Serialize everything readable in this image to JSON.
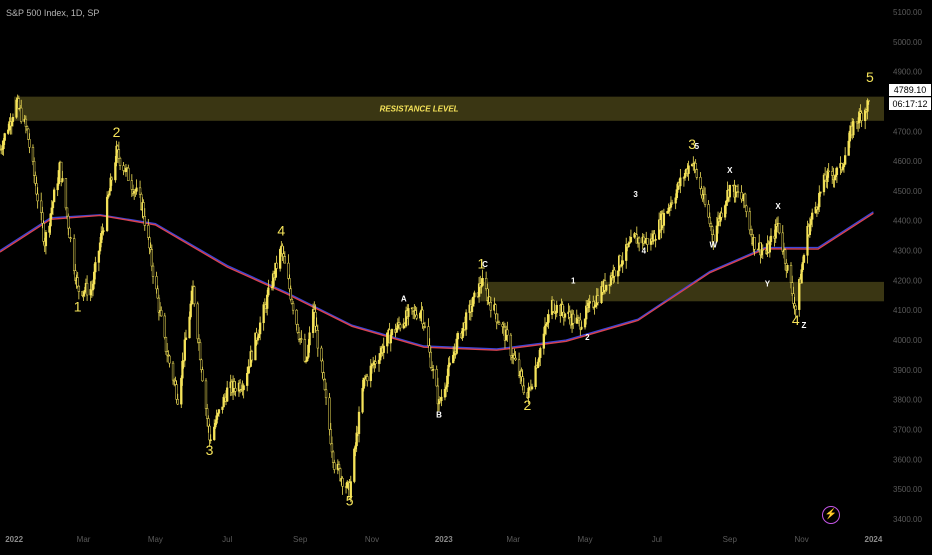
{
  "header": {
    "title": "S&P 500 Index, 1D, SP"
  },
  "price_tags": {
    "last_price": "4789.10",
    "countdown": "06:17:12"
  },
  "colors": {
    "background": "#000000",
    "candle": "#f5e35a",
    "zone_fill": "#3a3613",
    "ma_blue": "#3b46d8",
    "ma_red": "#d8434f",
    "label_yellow": "#f5e35a",
    "label_white": "#ffffff",
    "axis_text": "#5a5a5a",
    "accent_icon": "#c455e6"
  },
  "icons": {
    "bolt": "lightning-bolt-icon"
  },
  "chart_data": {
    "type": "candlestick",
    "title": "S&P 500 Index, 1D, SP",
    "y_ticks": [
      3400,
      3500,
      3600,
      3700,
      3800,
      3900,
      4000,
      4100,
      4200,
      4300,
      4400,
      4500,
      4600,
      4700,
      4800,
      4900,
      5000,
      5100
    ],
    "y_range": [
      3370,
      5140
    ],
    "x_range": [
      "2021-12-20",
      "2024-01-10"
    ],
    "x_ticks": [
      {
        "date": "2022-01-01",
        "label": "2022"
      },
      {
        "date": "2022-03-01",
        "label": "Mar"
      },
      {
        "date": "2022-05-01",
        "label": "May"
      },
      {
        "date": "2022-07-01",
        "label": "Jul"
      },
      {
        "date": "2022-09-01",
        "label": "Sep"
      },
      {
        "date": "2022-11-01",
        "label": "Nov"
      },
      {
        "date": "2023-01-01",
        "label": "2023"
      },
      {
        "date": "2023-03-01",
        "label": "Mar"
      },
      {
        "date": "2023-05-01",
        "label": "May"
      },
      {
        "date": "2023-07-01",
        "label": "Jul"
      },
      {
        "date": "2023-09-01",
        "label": "Sep"
      },
      {
        "date": "2023-11-01",
        "label": "Nov"
      },
      {
        "date": "2024-01-01",
        "label": "2024"
      }
    ],
    "price_path": [
      [
        "2021-12-20",
        4640
      ],
      [
        "2022-01-03",
        4796
      ],
      [
        "2022-01-12",
        4700
      ],
      [
        "2022-01-27",
        4330
      ],
      [
        "2022-02-09",
        4580
      ],
      [
        "2022-02-24",
        4170
      ],
      [
        "2022-03-08",
        4170
      ],
      [
        "2022-03-29",
        4630
      ],
      [
        "2022-04-20",
        4450
      ],
      [
        "2022-05-09",
        3990
      ],
      [
        "2022-05-20",
        3810
      ],
      [
        "2022-06-02",
        4170
      ],
      [
        "2022-06-16",
        3667
      ],
      [
        "2022-07-01",
        3830
      ],
      [
        "2022-07-15",
        3860
      ],
      [
        "2022-08-16",
        4305
      ],
      [
        "2022-09-06",
        3910
      ],
      [
        "2022-09-12",
        4110
      ],
      [
        "2022-09-30",
        3585
      ],
      [
        "2022-10-13",
        3491
      ],
      [
        "2022-10-25",
        3860
      ],
      [
        "2022-11-15",
        4010
      ],
      [
        "2022-12-01",
        4080
      ],
      [
        "2022-12-13",
        4100
      ],
      [
        "2022-12-28",
        3785
      ],
      [
        "2023-01-12",
        3990
      ],
      [
        "2023-02-02",
        4195
      ],
      [
        "2023-02-23",
        4010
      ],
      [
        "2023-03-13",
        3808
      ],
      [
        "2023-04-03",
        4120
      ],
      [
        "2023-04-26",
        4055
      ],
      [
        "2023-05-19",
        4190
      ],
      [
        "2023-06-12",
        4340
      ],
      [
        "2023-06-26",
        4330
      ],
      [
        "2023-07-31",
        4607
      ],
      [
        "2023-08-18",
        4350
      ],
      [
        "2023-09-01",
        4515
      ],
      [
        "2023-09-13",
        4465
      ],
      [
        "2023-09-21",
        4330
      ],
      [
        "2023-10-02",
        4290
      ],
      [
        "2023-10-12",
        4390
      ],
      [
        "2023-10-27",
        4103
      ],
      [
        "2023-11-06",
        4365
      ],
      [
        "2023-11-21",
        4540
      ],
      [
        "2023-12-04",
        4570
      ],
      [
        "2023-12-15",
        4720
      ],
      [
        "2023-12-28",
        4795
      ]
    ],
    "moving_averages": [
      {
        "color": "blue",
        "values": [
          [
            "2021-12-20",
            4300
          ],
          [
            "2022-02-01",
            4410
          ],
          [
            "2022-03-15",
            4420
          ],
          [
            "2022-05-01",
            4390
          ],
          [
            "2022-07-01",
            4250
          ],
          [
            "2022-08-20",
            4160
          ],
          [
            "2022-10-15",
            4050
          ],
          [
            "2022-12-15",
            3980
          ],
          [
            "2023-02-15",
            3970
          ],
          [
            "2023-04-15",
            4000
          ],
          [
            "2023-06-15",
            4070
          ],
          [
            "2023-08-15",
            4230
          ],
          [
            "2023-10-01",
            4310
          ],
          [
            "2023-11-15",
            4310
          ],
          [
            "2024-01-01",
            4430
          ]
        ]
      },
      {
        "color": "red",
        "values": [
          [
            "2021-12-20",
            4295
          ],
          [
            "2022-02-01",
            4405
          ],
          [
            "2022-03-15",
            4418
          ],
          [
            "2022-05-01",
            4386
          ],
          [
            "2022-07-01",
            4245
          ],
          [
            "2022-08-20",
            4156
          ],
          [
            "2022-10-15",
            4046
          ],
          [
            "2022-12-15",
            3976
          ],
          [
            "2023-02-15",
            3966
          ],
          [
            "2023-04-15",
            3996
          ],
          [
            "2023-06-15",
            4066
          ],
          [
            "2023-08-15",
            4226
          ],
          [
            "2023-10-01",
            4306
          ],
          [
            "2023-11-15",
            4305
          ],
          [
            "2024-01-01",
            4425
          ]
        ]
      }
    ],
    "zones": [
      {
        "label": "RESISTANCE LEVEL",
        "x": [
          "2022-01-01",
          "2024-01-10"
        ],
        "y": [
          4735,
          4816
        ]
      },
      {
        "label": "",
        "x": [
          "2023-02-01",
          "2024-01-10"
        ],
        "y": [
          4130,
          4195
        ]
      }
    ],
    "annotations": [
      {
        "text": "1",
        "date": "2022-02-24",
        "price": 4095,
        "color": "yellow",
        "size": "large"
      },
      {
        "text": "2",
        "date": "2022-03-29",
        "price": 4680,
        "color": "yellow",
        "size": "large"
      },
      {
        "text": "3",
        "date": "2022-06-16",
        "price": 3615,
        "color": "yellow",
        "size": "large"
      },
      {
        "text": "4",
        "date": "2022-08-16",
        "price": 4350,
        "color": "yellow",
        "size": "large"
      },
      {
        "text": "5",
        "date": "2022-10-13",
        "price": 3445,
        "color": "yellow",
        "size": "large"
      },
      {
        "text": "A",
        "date": "2022-11-28",
        "price": 4130,
        "color": "white",
        "size": "small"
      },
      {
        "text": "B",
        "date": "2022-12-28",
        "price": 3740,
        "color": "white",
        "size": "small"
      },
      {
        "text": "1",
        "date": "2023-02-02",
        "price": 4240,
        "color": "yellow",
        "size": "large"
      },
      {
        "text": "C",
        "date": "2023-02-05",
        "price": 4245,
        "color": "white",
        "size": "small"
      },
      {
        "text": "2",
        "date": "2023-03-13",
        "price": 3765,
        "color": "yellow",
        "size": "large"
      },
      {
        "text": "1",
        "date": "2023-04-21",
        "price": 4190,
        "color": "white",
        "size": "small"
      },
      {
        "text": "2",
        "date": "2023-05-03",
        "price": 4000,
        "color": "white",
        "size": "small"
      },
      {
        "text": "3",
        "date": "2023-06-13",
        "price": 4480,
        "color": "white",
        "size": "small"
      },
      {
        "text": "4",
        "date": "2023-06-20",
        "price": 4290,
        "color": "white",
        "size": "small"
      },
      {
        "text": "3",
        "date": "2023-07-31",
        "price": 4640,
        "color": "yellow",
        "size": "large"
      },
      {
        "text": "5",
        "date": "2023-08-04",
        "price": 4640,
        "color": "white",
        "size": "small"
      },
      {
        "text": "W",
        "date": "2023-08-18",
        "price": 4310,
        "color": "white",
        "size": "small"
      },
      {
        "text": "X",
        "date": "2023-09-01",
        "price": 4560,
        "color": "white",
        "size": "small"
      },
      {
        "text": "Y",
        "date": "2023-10-03",
        "price": 4180,
        "color": "white",
        "size": "small"
      },
      {
        "text": "X",
        "date": "2023-10-12",
        "price": 4440,
        "color": "white",
        "size": "small"
      },
      {
        "text": "4",
        "date": "2023-10-27",
        "price": 4050,
        "color": "yellow",
        "size": "large"
      },
      {
        "text": "Z",
        "date": "2023-11-03",
        "price": 4040,
        "color": "white",
        "size": "small"
      },
      {
        "text": "5",
        "date": "2023-12-29",
        "price": 4865,
        "color": "yellow",
        "size": "large"
      }
    ],
    "last_price": "4789.10",
    "countdown": "06:17:12"
  }
}
